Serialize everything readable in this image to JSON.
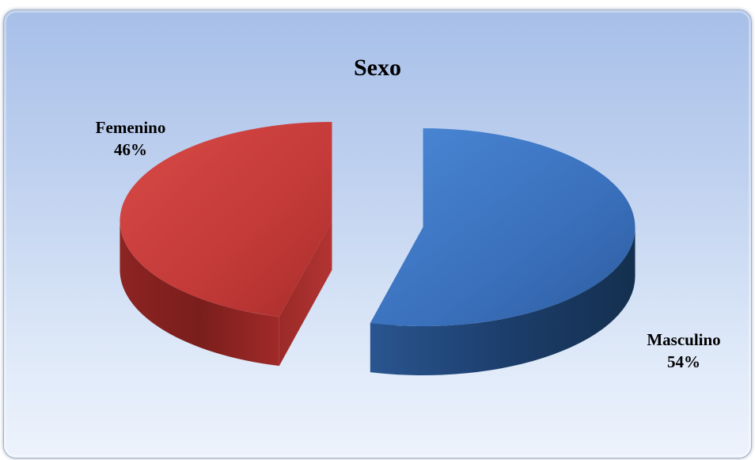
{
  "chart_data": {
    "type": "pie",
    "title": "Sexo",
    "slices": [
      {
        "label": "Masculino",
        "value": 54,
        "value_label": "54%",
        "color": "#3c78c8"
      },
      {
        "label": "Femenino",
        "value": 46,
        "value_label": "46%",
        "color": "#c8383a"
      }
    ],
    "style": "3d-exploded"
  }
}
